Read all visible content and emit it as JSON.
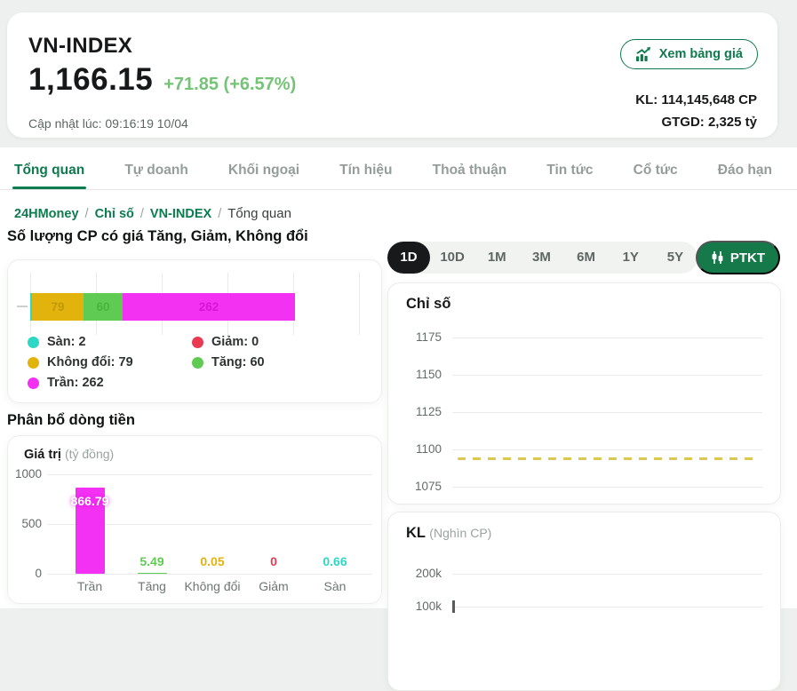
{
  "header": {
    "title": "VN-INDEX",
    "price": "1,166.15",
    "change": "+71.85 (+6.57%)",
    "updated": "Cập nhật lúc: 09:16:19 10/04",
    "view_board_button": "Xem bảng giá",
    "volume_label": "KL: 114,145,648 CP",
    "value_label": "GTGD: 2,325 tỷ"
  },
  "tabs": [
    {
      "label": "Tổng quan",
      "active": true
    },
    {
      "label": "Tự doanh",
      "active": false
    },
    {
      "label": "Khối ngoại",
      "active": false
    },
    {
      "label": "Tín hiệu",
      "active": false
    },
    {
      "label": "Thoả thuận",
      "active": false
    },
    {
      "label": "Tin tức",
      "active": false
    },
    {
      "label": "Cổ tức",
      "active": false
    },
    {
      "label": "Đáo hạn",
      "active": false
    }
  ],
  "breadcrumb": {
    "links": [
      "24HMoney",
      "Chỉ số",
      "VN-INDEX"
    ],
    "current": "Tổng quan",
    "separator": "/"
  },
  "sections": {
    "advance_decline_title": "Số lượng CP có giá Tăng, Giảm, Không đổi",
    "money_flow_title": "Phân bổ dòng tiền"
  },
  "range_selector": {
    "options": [
      "1D",
      "10D",
      "1M",
      "3M",
      "6M",
      "1Y",
      "5Y"
    ],
    "active": "1D",
    "ptkt_label": "PTKT"
  },
  "chart_data": [
    {
      "type": "bar",
      "subtype": "horizontal-stacked",
      "title": "Số lượng CP có giá Tăng, Giảm, Không đổi",
      "axis_units_per_gridline": 100,
      "segments": [
        {
          "name": "Sàn",
          "value": 2,
          "color": "#2cd8c5",
          "label": "",
          "label_color": "#1db8a6"
        },
        {
          "name": "Không đổi",
          "value": 79,
          "color": "#e2b30d",
          "label": "79",
          "label_color": "#c09a06"
        },
        {
          "name": "Tăng",
          "value": 60,
          "color": "#5fcb52",
          "label": "60",
          "label_color": "#48b53e"
        },
        {
          "name": "Trần",
          "value": 262,
          "color": "#f331f3",
          "label": "262",
          "label_color": "#d517d5"
        }
      ],
      "legend": [
        {
          "name": "Sàn",
          "value": "2",
          "color": "#2cd8c5"
        },
        {
          "name": "Giảm",
          "value": "0",
          "color": "#e93a52"
        },
        {
          "name": "Không đổi",
          "value": "79",
          "color": "#e2b30d"
        },
        {
          "name": "Tăng",
          "value": "60",
          "color": "#5fcb52"
        },
        {
          "name": "Trần",
          "value": "262",
          "color": "#f331f3"
        }
      ]
    },
    {
      "type": "bar",
      "title": "Giá trị",
      "unit": "(tỷ đồng)",
      "categories": [
        "Trần",
        "Tăng",
        "Không đổi",
        "Giảm",
        "Sàn"
      ],
      "values": [
        866.79,
        5.49,
        0.05,
        0,
        0.66
      ],
      "values_display": [
        "866.79",
        "5.49",
        "0.05",
        "0",
        "0.66"
      ],
      "colors": [
        "#f331f3",
        "#5fcb52",
        "#e2b30d",
        "#e93a52",
        "#2cd8c5"
      ],
      "ylim": [
        0,
        1000
      ],
      "yticks": [
        "1000",
        "500",
        "0"
      ]
    },
    {
      "type": "line",
      "title": "Chỉ số",
      "yticks": [
        "1175",
        "1150",
        "1125",
        "1100",
        "1075"
      ],
      "ylim": [
        1075,
        1187
      ],
      "reference_line": {
        "value": 1094,
        "style": "dashed",
        "color": "#dcc84e"
      },
      "series": []
    },
    {
      "type": "bar",
      "title": "KL",
      "unit": "(Nghìn CP)",
      "yticks": [
        "200k",
        "100k"
      ],
      "values": []
    }
  ]
}
